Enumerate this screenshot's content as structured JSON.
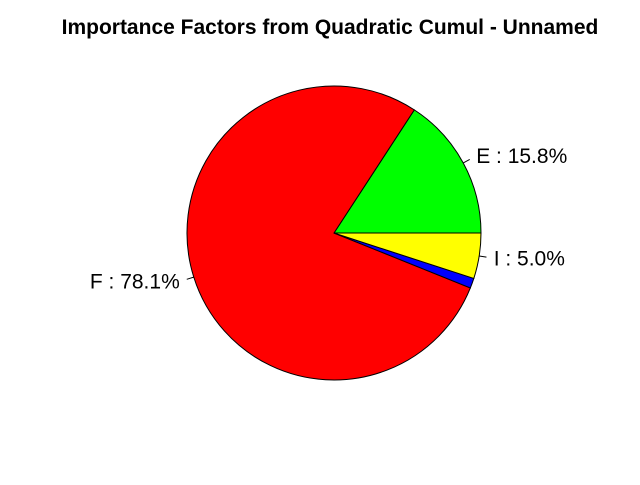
{
  "chart_data": {
    "type": "pie",
    "title": "Importance Factors from Quadratic Cumul - Unnamed",
    "slices": [
      {
        "label": "E",
        "value": 15.8,
        "display": "E : 15.8%",
        "color": "#00ff00",
        "show_label": true
      },
      {
        "label": "F",
        "value": 78.1,
        "display": "F : 78.1%",
        "color": "#ff0000",
        "show_label": true
      },
      {
        "label": "",
        "value": 1.1,
        "display": "",
        "color": "#0000ff",
        "show_label": false
      },
      {
        "label": "I",
        "value": 5.0,
        "display": "I : 5.0%",
        "color": "#ffff00",
        "show_label": true
      }
    ],
    "start_angle_deg": 0,
    "direction": "counterclockwise",
    "legend": "none"
  }
}
